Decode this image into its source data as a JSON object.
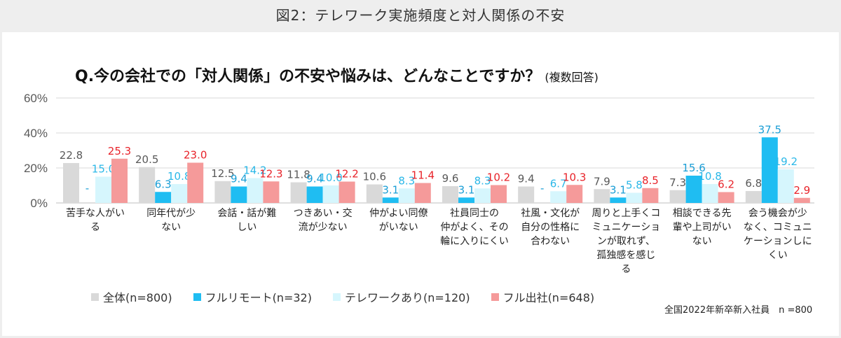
{
  "figure_title": "図2：テレワーク実施頻度と対人関係の不安",
  "question": "Q.今の会社での「対人関係」の不安や悩みは、どんなことですか？",
  "question_note": "(複数回答)",
  "footnote": "全国2022年新卒新入社員　n =800",
  "chart_data": {
    "type": "bar",
    "ylim": [
      0,
      60
    ],
    "yticks": [
      "0%",
      "20%",
      "40%",
      "60%"
    ],
    "grid": true,
    "legend_position": "bottom",
    "categories": [
      [
        "苦手な人がい",
        "る"
      ],
      [
        "同年代が少",
        "ない"
      ],
      [
        "会話・話が難",
        "しい"
      ],
      [
        "つきあい・交",
        "流が少ない"
      ],
      [
        "仲がよい同僚",
        "がいない"
      ],
      [
        "社員同士の",
        "仲がよく、その",
        "輪に入りにくい"
      ],
      [
        "社風・文化が",
        "自分の性格に",
        "合わない"
      ],
      [
        "周りと上手くコ",
        "ミュニケーショ",
        "ンが取れず、",
        "孤独感を感じ",
        "る"
      ],
      [
        "相談できる先",
        "輩や上司がい",
        "ない"
      ],
      [
        "会う機会が少",
        "なく、コミュニ",
        "ケーションしに",
        "くい"
      ]
    ],
    "series": [
      {
        "name": "全体(n=800)",
        "color": "#d9d9d9",
        "label_color": "#595959",
        "values": [
          22.8,
          20.5,
          12.5,
          11.8,
          10.6,
          9.6,
          9.4,
          7.9,
          7.3,
          6.8
        ]
      },
      {
        "name": "フルリモート(n=32)",
        "color": "#1fbdf2",
        "label_color": "#1a9ed6",
        "values": [
          0,
          6.3,
          9.4,
          9.4,
          3.1,
          3.1,
          0,
          3.1,
          15.6,
          37.5
        ]
      },
      {
        "name": "テレワークあり(n=120)",
        "color": "#d6f6fd",
        "label_color": "#2bb8e8",
        "values": [
          15.0,
          10.8,
          14.2,
          10.0,
          8.3,
          8.3,
          6.7,
          5.8,
          10.8,
          19.2
        ]
      },
      {
        "name": "フル出社(n=648)",
        "color": "#f59a9a",
        "label_color": "#e8232a",
        "values": [
          25.3,
          23.0,
          12.3,
          12.2,
          11.4,
          10.2,
          10.3,
          8.5,
          6.2,
          2.9
        ]
      }
    ],
    "data_labels": [
      [
        "22.8",
        "-",
        "15.0",
        "25.3"
      ],
      [
        "20.5",
        "6.3",
        "10.8",
        "23.0"
      ],
      [
        "12.5",
        "9.4",
        "14.2",
        "12.3"
      ],
      [
        "11.8",
        "9.4",
        "10.0",
        "12.2"
      ],
      [
        "10.6",
        "3.1",
        "8.3",
        "11.4"
      ],
      [
        "9.6",
        "3.1",
        "8.3",
        "10.2"
      ],
      [
        "9.4",
        "-",
        "6.7",
        "10.3"
      ],
      [
        "7.9",
        "3.1",
        "5.8",
        "8.5"
      ],
      [
        "7.3",
        "15.6",
        "10.8",
        "6.2"
      ],
      [
        "6.8",
        "37.5",
        "19.2",
        "2.9"
      ]
    ]
  }
}
